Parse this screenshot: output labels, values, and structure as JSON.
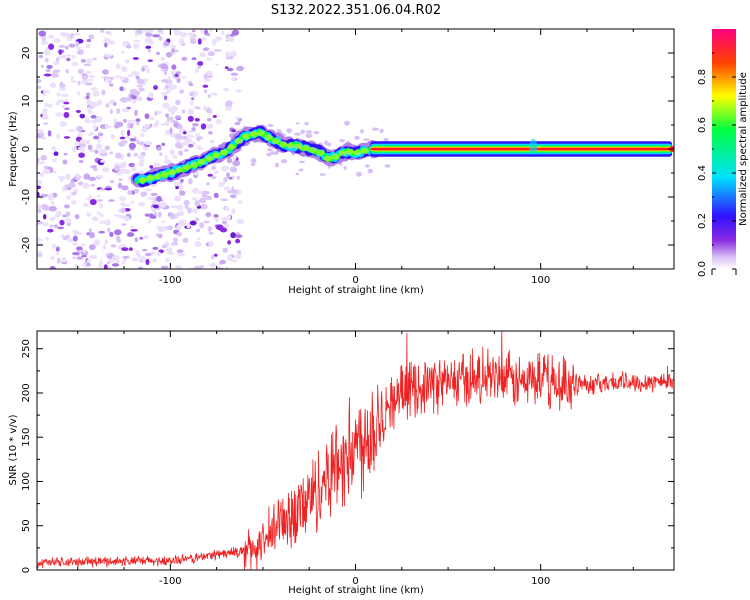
{
  "figure": {
    "title": "S132.2022.351.06.04.R02"
  },
  "chart_data": [
    {
      "type": "heatmap",
      "xlabel": "Height of straight line (km)",
      "ylabel": "Frequency (Hz)",
      "xlim": [
        -172,
        172
      ],
      "ylim": [
        -25,
        25
      ],
      "xticks": [
        -100,
        0,
        100
      ],
      "yticks": [
        -20,
        -10,
        0,
        10,
        20
      ],
      "colorbar": {
        "label": "Normalized spectral amplitude",
        "range": [
          0.0,
          1.0
        ],
        "ticks": [
          0.0,
          0.2,
          0.4,
          0.6,
          0.8
        ],
        "colors": [
          "#ffffff",
          "#d8bff5",
          "#8a2be2",
          "#3010ff",
          "#00e0ff",
          "#00ff40",
          "#ffff00",
          "#ff4000",
          "#ff0080"
        ]
      },
      "trace": {
        "description_points_x": [
          -115,
          -100,
          -85,
          -70,
          -60,
          -52,
          -45,
          -38,
          -30,
          -20,
          -15,
          -10,
          -5,
          0,
          10,
          95,
          172
        ],
        "description_points_y": [
          -6.5,
          -5,
          -3,
          -0.5,
          2.5,
          3.5,
          2,
          0.8,
          0.5,
          -0.5,
          -2,
          -1.5,
          -0.5,
          -0.8,
          0,
          0,
          0
        ]
      }
    },
    {
      "type": "line",
      "xlabel": "Height of straight line (km)",
      "ylabel": "SNR (10 * v/v)",
      "xlim": [
        -172,
        172
      ],
      "ylim": [
        0,
        270
      ],
      "xticks": [
        -100,
        0,
        100
      ],
      "yticks": [
        0,
        50,
        100,
        150,
        200,
        250
      ],
      "series": [
        {
          "color": "#ee2222",
          "x": [
            -172,
            -150,
            -130,
            -110,
            -95,
            -85,
            -75,
            -65,
            -58,
            -50,
            -45,
            -40,
            -35,
            -30,
            -25,
            -20,
            -15,
            -10,
            -5,
            0,
            5,
            10,
            15,
            20,
            25,
            30,
            40,
            50,
            60,
            70,
            80,
            90,
            100,
            110,
            120,
            130,
            140,
            150,
            160,
            172
          ],
          "y": [
            8,
            9,
            10,
            10,
            11,
            14,
            18,
            20,
            22,
            28,
            40,
            55,
            62,
            70,
            80,
            92,
            110,
            120,
            130,
            140,
            150,
            165,
            180,
            190,
            200,
            205,
            210,
            212,
            215,
            218,
            215,
            212,
            215,
            210,
            212,
            210,
            212,
            212,
            213,
            214
          ]
        }
      ]
    }
  ]
}
